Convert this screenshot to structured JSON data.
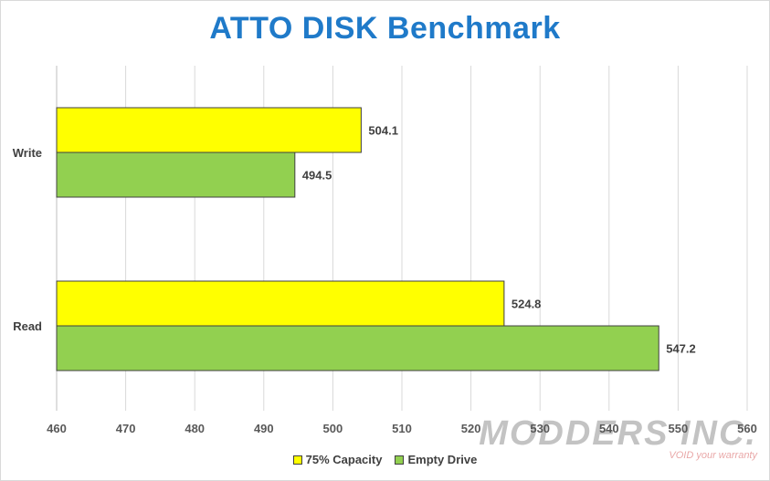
{
  "chart_data": {
    "type": "bar",
    "orientation": "horizontal",
    "title": "ATTO DISK Benchmark",
    "categories": [
      "Write",
      "Read"
    ],
    "series": [
      {
        "name": "75% Capacity",
        "values": [
          504.1,
          524.8
        ],
        "color": "#ffff00"
      },
      {
        "name": "Empty Drive",
        "values": [
          494.5,
          547.2
        ],
        "color": "#92d050"
      }
    ],
    "data_labels": [
      "504.1",
      "494.5",
      "524.8",
      "547.2"
    ],
    "xlim": [
      460,
      560
    ],
    "xticks": [
      "460",
      "470",
      "480",
      "490",
      "500",
      "510",
      "520",
      "530",
      "540",
      "550",
      "560"
    ],
    "grid": "vertical",
    "legend_position": "bottom"
  },
  "watermark": {
    "text": "MODDERS INC.",
    "subtext": "VOID your warranty"
  }
}
